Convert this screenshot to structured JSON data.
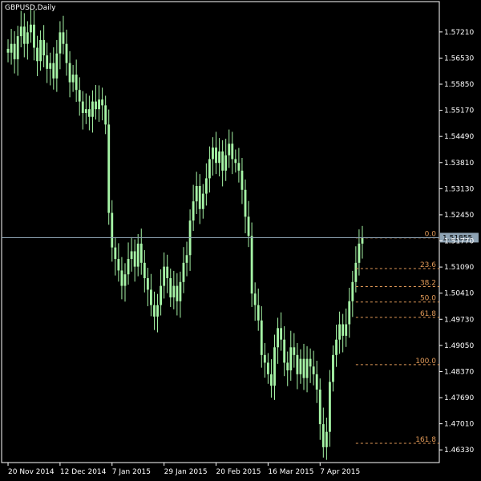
{
  "window": {
    "title": "GBPUSD,Daily"
  },
  "colors": {
    "background": "#000000",
    "frame": "#ffffff",
    "candle": "#a6f5a6",
    "fib": "#e29a58",
    "price_line": "#8ea3b4",
    "current_price_bg": "#8ea3b4",
    "current_price_text": "#000000",
    "axis_text": "#ffffff"
  },
  "chart_data": {
    "type": "candlestick",
    "symbol": "GBPUSD",
    "timeframe": "Daily",
    "ylim": [
      1.6305,
      1.58
    ],
    "y_ticks": [
      "1.57210",
      "1.56530",
      "1.55850",
      "1.55170",
      "1.54490",
      "1.53810",
      "1.53130",
      "1.52450",
      "1.51770",
      "1.51090",
      "1.50410",
      "1.49730",
      "1.49050",
      "1.48370",
      "1.47690",
      "1.47010",
      "1.46330"
    ],
    "x_ticks": [
      "20 Nov 2014",
      "12 Dec 2014",
      "7 Jan 2015",
      "29 Jan 2015",
      "20 Feb 2015",
      "16 Mar 2015",
      "7 Apr 2015"
    ],
    "x_tick_bars": [
      0,
      16,
      32,
      48,
      64,
      80,
      96
    ],
    "bar_count": 110,
    "current_price": "1.51855",
    "current_price_value": 1.51855,
    "closes": [
      1.5667,
      1.569,
      1.565,
      1.571,
      1.5735,
      1.569,
      1.572,
      1.574,
      1.568,
      1.5645,
      1.57,
      1.566,
      1.5625,
      1.564,
      1.56,
      1.5665,
      1.572,
      1.569,
      1.564,
      1.559,
      1.561,
      1.557,
      1.554,
      1.551,
      1.552,
      1.55,
      1.554,
      1.552,
      1.5545,
      1.553,
      1.548,
      1.525,
      1.516,
      1.513,
      1.51,
      1.506,
      1.509,
      1.513,
      1.515,
      1.511,
      1.517,
      1.512,
      1.508,
      1.505,
      1.501,
      1.498,
      1.501,
      1.506,
      1.511,
      1.508,
      1.503,
      1.506,
      1.502,
      1.507,
      1.512,
      1.514,
      1.523,
      1.528,
      1.532,
      1.526,
      1.53,
      1.534,
      1.539,
      1.542,
      1.538,
      1.541,
      1.536,
      1.54,
      1.543,
      1.539,
      1.538,
      1.536,
      1.531,
      1.524,
      1.519,
      1.504,
      1.501,
      1.497,
      1.488,
      1.486,
      1.483,
      1.48,
      1.49,
      1.495,
      1.492,
      1.486,
      1.484,
      1.49,
      1.488,
      1.483,
      1.487,
      1.482,
      1.487,
      1.485,
      1.483,
      1.479,
      1.47,
      1.464,
      1.468,
      1.481,
      1.488,
      1.492,
      1.496,
      1.493,
      1.496,
      1.502,
      1.507,
      1.512,
      1.517,
      1.5185
    ],
    "fibonacci": {
      "levels": [
        {
          "label": "0.0",
          "value": 1.5185
        },
        {
          "label": "23.6",
          "value": 1.5105
        },
        {
          "label": "38.2",
          "value": 1.5058
        },
        {
          "label": "50.0",
          "value": 1.5018
        },
        {
          "label": "61.8",
          "value": 1.4978
        },
        {
          "label": "100.0",
          "value": 1.4855
        },
        {
          "label": "161.8",
          "value": 1.465
        }
      ],
      "start_bar": 107
    }
  }
}
